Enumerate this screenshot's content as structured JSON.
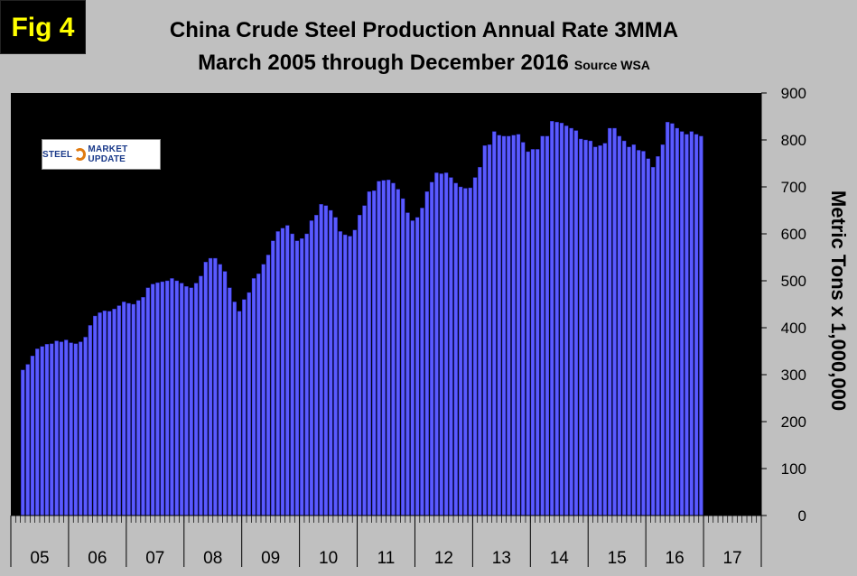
{
  "badge": "Fig 4",
  "title_line1": "China Crude Steel Production Annual Rate 3MMA",
  "title_line2": "March 2005 through December 2016",
  "source": "Source WSA",
  "logo_text": {
    "steel": "STEEL",
    "rest": "MARKET UPDATE"
  },
  "colors": {
    "plot_bg": "#000000",
    "bar_fill": "#5a5aff",
    "bar_edge": "#2020b0",
    "panel_bg": "#c0c0c0"
  },
  "chart_data": {
    "type": "bar",
    "title": "China Crude Steel Production Annual Rate 3MMA",
    "subtitle": "March 2005 through December 2016",
    "ylabel": "Metric Tons x 1,000,000",
    "xlabel": "",
    "ylim": [
      0,
      900
    ],
    "yticks": [
      0,
      100,
      200,
      300,
      400,
      500,
      600,
      700,
      800,
      900
    ],
    "year_labels": [
      "05",
      "06",
      "07",
      "08",
      "09",
      "10",
      "11",
      "12",
      "13",
      "14",
      "15",
      "16",
      "17"
    ],
    "start": "2005-03",
    "series": [
      {
        "name": "China crude steel production, annual rate 3MMA",
        "values": [
          310,
          322,
          340,
          355,
          360,
          365,
          366,
          372,
          370,
          374,
          368,
          366,
          370,
          380,
          405,
          425,
          432,
          436,
          435,
          440,
          447,
          455,
          452,
          450,
          458,
          465,
          485,
          493,
          496,
          498,
          500,
          505,
          500,
          495,
          488,
          485,
          495,
          510,
          540,
          548,
          548,
          535,
          520,
          485,
          455,
          435,
          460,
          475,
          505,
          515,
          535,
          555,
          585,
          605,
          612,
          618,
          600,
          585,
          590,
          600,
          628,
          640,
          663,
          660,
          650,
          635,
          605,
          598,
          595,
          608,
          640,
          660,
          690,
          692,
          712,
          714,
          715,
          708,
          695,
          675,
          645,
          628,
          635,
          655,
          690,
          710,
          730,
          728,
          730,
          720,
          708,
          700,
          697,
          698,
          720,
          742,
          788,
          790,
          818,
          810,
          808,
          808,
          810,
          812,
          795,
          775,
          780,
          780,
          808,
          808,
          840,
          838,
          836,
          830,
          825,
          820,
          802,
          800,
          798,
          785,
          788,
          793,
          825,
          825,
          808,
          798,
          785,
          790,
          778,
          776,
          760,
          742,
          765,
          790,
          838,
          835,
          825,
          818,
          812,
          818,
          812,
          808
        ]
      }
    ]
  }
}
